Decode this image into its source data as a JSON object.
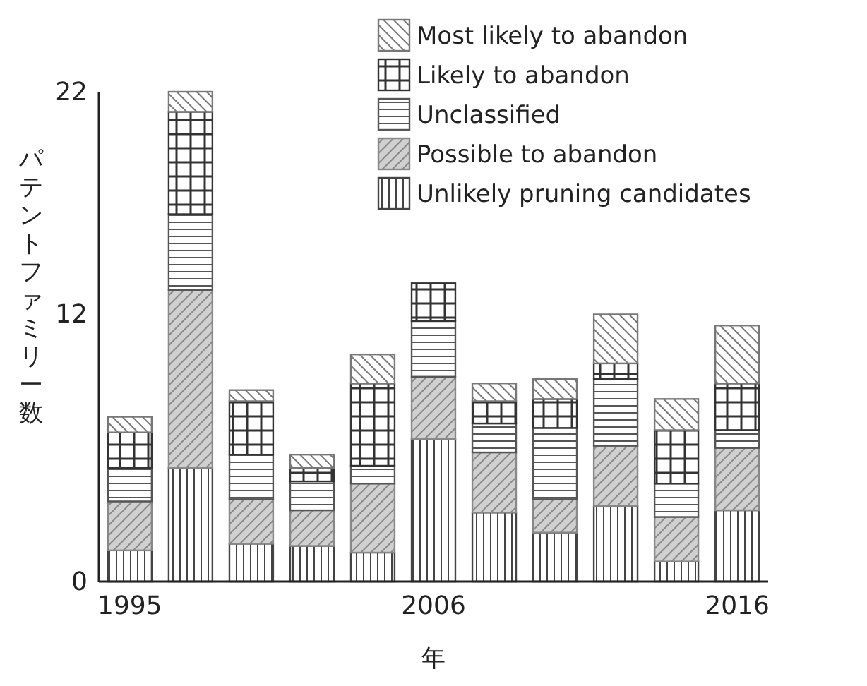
{
  "chart_data": {
    "type": "bar",
    "stacked": true,
    "ylabel": "パテントファミリー数",
    "xlabel": "年",
    "categories": [
      "1995",
      null,
      null,
      null,
      null,
      "2006",
      null,
      null,
      null,
      null,
      "2016"
    ],
    "ylim": [
      0,
      22
    ],
    "yticks": [
      0,
      12,
      22
    ],
    "legend": "top right",
    "series": [
      {
        "name": "Unlikely pruning candidates",
        "color": "#444444",
        "values": [
          1.4,
          5.1,
          1.7,
          1.6,
          1.3,
          6.4,
          3.1,
          2.2,
          3.4,
          0.9,
          3.2
        ]
      },
      {
        "name": "Possible to abandon",
        "color": "#888888",
        "values": [
          2.2,
          8.0,
          2.0,
          1.6,
          3.1,
          2.8,
          2.7,
          1.5,
          2.7,
          2.0,
          2.8
        ]
      },
      {
        "name": "Unclassified",
        "color": "#555555",
        "values": [
          1.5,
          3.4,
          2.0,
          1.3,
          0.8,
          2.5,
          1.3,
          3.2,
          3.0,
          1.5,
          0.8
        ]
      },
      {
        "name": "Likely to abandon",
        "color": "#333333",
        "values": [
          1.6,
          4.6,
          2.4,
          0.6,
          3.7,
          1.7,
          1.0,
          1.3,
          0.7,
          2.4,
          2.1
        ]
      },
      {
        "name": "Most likely to abandon",
        "color": "#777777",
        "values": [
          0.7,
          0.9,
          0.5,
          0.6,
          1.3,
          null,
          0.8,
          0.9,
          2.2,
          1.4,
          2.6
        ]
      }
    ]
  }
}
